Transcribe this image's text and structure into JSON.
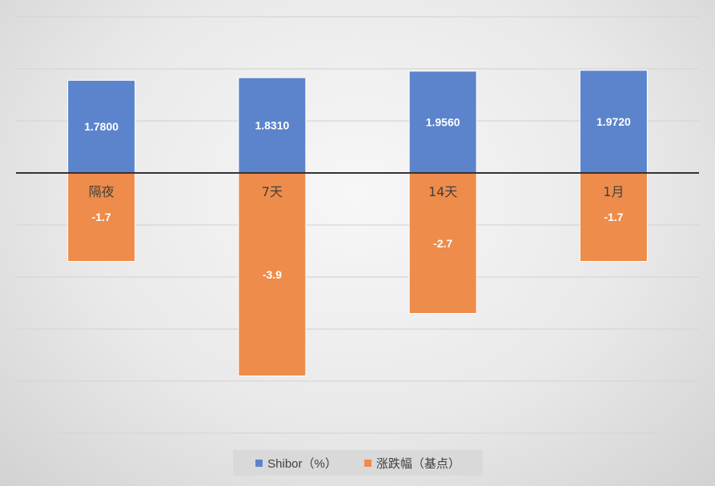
{
  "chart_data": {
    "type": "bar",
    "categories": [
      "隔夜",
      "7天",
      "14天",
      "1月"
    ],
    "series": [
      {
        "name": "Shibor（%）",
        "values": [
          1.78,
          1.831,
          1.956,
          1.972
        ],
        "labels": [
          "1.7800",
          "1.8310",
          "1.9560",
          "1.9720"
        ],
        "color": "#5b84cc"
      },
      {
        "name": "涨跌幅（基点）",
        "values": [
          -1.7,
          -3.9,
          -2.7,
          -1.7
        ],
        "labels": [
          "-1.7",
          "-3.9",
          "-2.7",
          "-1.7"
        ],
        "color": "#ee8c4b"
      }
    ],
    "ylim": [
      -5,
      3
    ],
    "grid": true,
    "legend_position": "bottom"
  }
}
